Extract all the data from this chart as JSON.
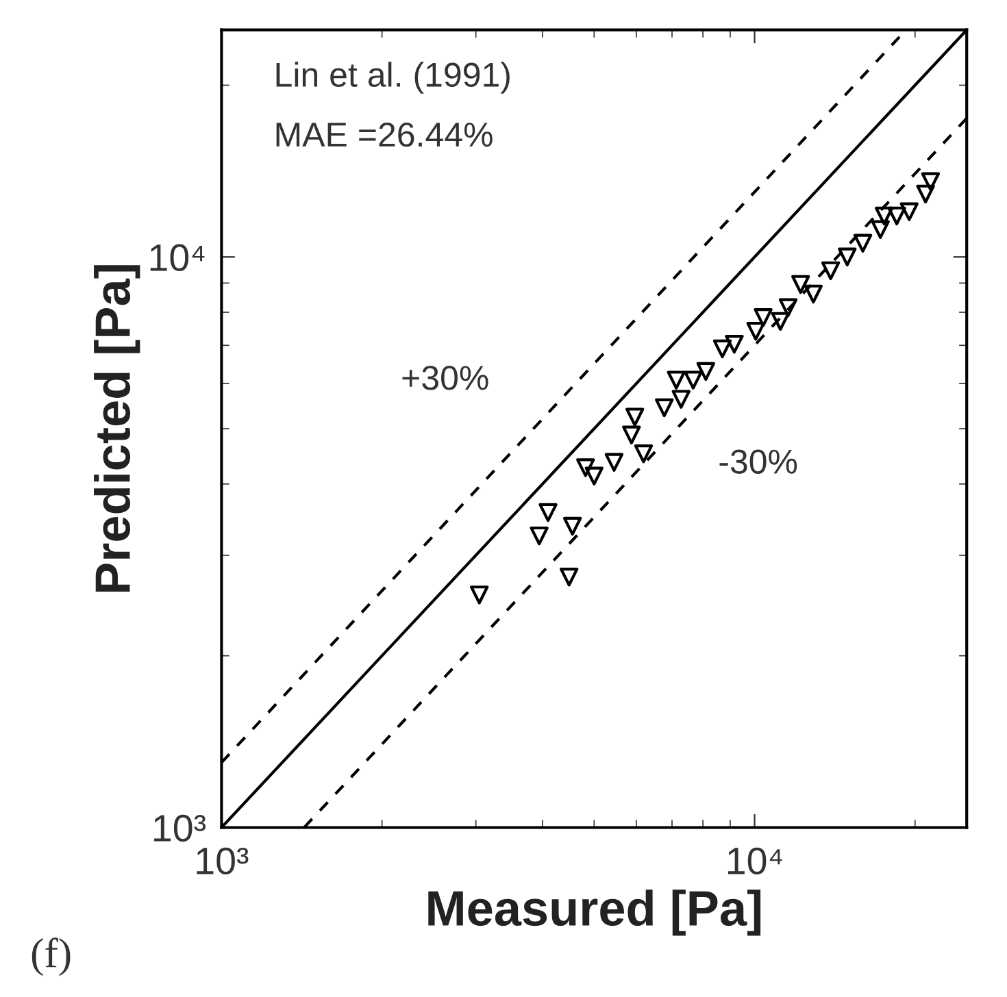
{
  "chart_data": {
    "type": "scatter",
    "xlabel": "Measured [Pa]",
    "ylabel": "Predicted [Pa]",
    "log": "xy",
    "xlim": [
      1000,
      25000
    ],
    "ylim": [
      1000,
      25000
    ],
    "xticks": [
      {
        "value": 1000,
        "label": "10³"
      },
      {
        "value": 10000,
        "label": "10⁴"
      }
    ],
    "yticks": [
      {
        "value": 1000,
        "label": "10³"
      },
      {
        "value": 10000,
        "label": "10⁴"
      }
    ],
    "grid": false,
    "legend": false,
    "series": [
      {
        "marker": "triangle",
        "color": "#000000",
        "x": [
          3045,
          4487,
          3944,
          4098,
          4553,
          5000,
          4818,
          5875,
          5961,
          6190,
          7130,
          7670,
          7280,
          8700,
          9160,
          10380,
          10050,
          11180,
          12200,
          12890,
          13890,
          14920,
          15960,
          17220,
          18480,
          19500,
          20930,
          21380,
          8100,
          5450,
          6770,
          17500,
          11560
        ],
        "values": [
          2556,
          2748,
          3244,
          3565,
          3373,
          4130,
          4272,
          4875,
          5240,
          4518,
          6083,
          6083,
          5630,
          6900,
          7030,
          7830,
          7410,
          7710,
          8950,
          8610,
          9460,
          10000,
          10570,
          11170,
          11800,
          12000,
          12890,
          13550,
          6300,
          4365,
          5440,
          11800,
          8150
        ]
      },
      {
        "type": "line",
        "line_style": "solid",
        "color": "#000000",
        "x": [
          1000,
          25000
        ],
        "values": [
          1000,
          25000
        ]
      },
      {
        "type": "line",
        "line_style": "dashed",
        "color": "#000000",
        "x": [
          1000,
          19231
        ],
        "values": [
          1300,
          25000
        ]
      },
      {
        "type": "line",
        "line_style": "dashed",
        "color": "#000000",
        "x": [
          1430,
          25000
        ],
        "values": [
          1001,
          17500
        ]
      }
    ],
    "annotations": [
      "Lin et al. (1991)",
      "MAE =26.44%",
      "+30%",
      "-30%",
      "(f)"
    ]
  }
}
